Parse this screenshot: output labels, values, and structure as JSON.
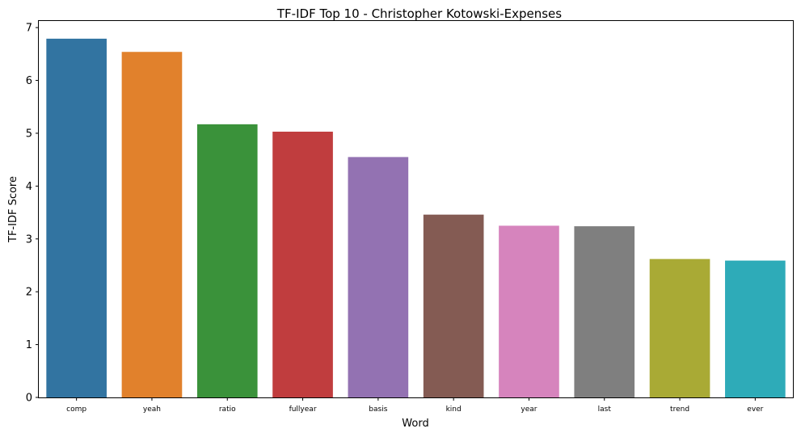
{
  "chart_data": {
    "type": "bar",
    "title": "TF-IDF Top 10 - Christopher Kotowski-Expenses",
    "xlabel": "Word",
    "ylabel": "TF-IDF Score",
    "categories": [
      "comp",
      "yeah",
      "ratio",
      "fullyear",
      "basis",
      "kind",
      "year",
      "last",
      "trend",
      "ever"
    ],
    "values": [
      6.79,
      6.54,
      5.17,
      5.03,
      4.55,
      3.46,
      3.25,
      3.24,
      2.62,
      2.59
    ],
    "ylim": [
      0,
      7.14
    ],
    "yticks": [
      "0",
      "1",
      "2",
      "3",
      "4",
      "5",
      "6",
      "7"
    ],
    "colors": [
      "#3274a1",
      "#e1812c",
      "#3a923a",
      "#c03d3e",
      "#9372b2",
      "#845b53",
      "#d684bd",
      "#7f7f7f",
      "#a9aa35",
      "#2eabb8"
    ],
    "grid": false,
    "legend": "none"
  }
}
